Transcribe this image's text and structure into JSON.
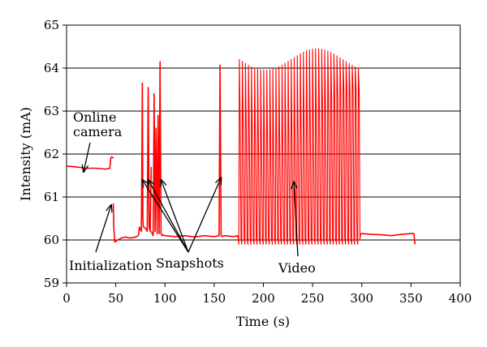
{
  "chart_data": {
    "type": "line",
    "title": "",
    "xlabel": "Time (s)",
    "ylabel": "Intensity (mA)",
    "xlim": [
      0,
      400
    ],
    "ylim": [
      59,
      65
    ],
    "xticks": [
      "0",
      "50",
      "100",
      "150",
      "200",
      "250",
      "300",
      "350",
      "400"
    ],
    "yticks": [
      "59",
      "60",
      "61",
      "62",
      "63",
      "64",
      "65"
    ],
    "grid": "horizontal",
    "legend": "none",
    "series_color": "#ff0000",
    "series": [
      {
        "segments": [
          {
            "x": [
              0,
              10,
              20,
              30,
              40,
              44,
              45,
              46,
              47,
              47.5
            ],
            "y": [
              61.72,
              61.7,
              61.67,
              61.67,
              61.65,
              61.67,
              61.92,
              61.93,
              61.92,
              61.9
            ]
          },
          {
            "x": [
              47.5,
              48,
              49,
              50,
              52,
              56,
              60,
              63,
              66,
              70,
              73
            ],
            "y": [
              60.85,
              60.3,
              59.95,
              59.97,
              60.0,
              60.05,
              60.07,
              60.05,
              60.05,
              60.07,
              60.1
            ]
          },
          {
            "x": [
              73,
              74,
              75,
              76,
              77,
              77.5,
              78
            ],
            "y": [
              60.1,
              60.3,
              60.25,
              60.2,
              63.65,
              60.5,
              60.3
            ]
          },
          {
            "x": [
              78,
              80,
              82,
              83,
              84,
              85,
              86
            ],
            "y": [
              60.3,
              60.28,
              60.2,
              63.55,
              60.3,
              60.2,
              61.7
            ]
          },
          {
            "x": [
              86,
              88,
              89,
              90,
              91,
              92,
              93,
              94,
              95,
              96,
              97,
              98,
              100
            ],
            "y": [
              60.2,
              60.1,
              63.4,
              60.2,
              62.6,
              60.15,
              62.9,
              60.15,
              64.15,
              60.15,
              60.1,
              60.12,
              60.1
            ]
          },
          {
            "x": [
              100,
              110,
              120,
              130,
              140,
              150,
              155,
              156,
              157,
              158,
              160,
              170,
              175
            ],
            "y": [
              60.1,
              60.08,
              60.1,
              60.07,
              60.1,
              60.08,
              60.1,
              64.07,
              60.1,
              60.08,
              60.1,
              60.08,
              60.1
            ]
          }
        ],
        "video_burst": {
          "x_start": 175,
          "x_end": 299,
          "peaks_high": 64.2,
          "peaks_low": 59.9,
          "count": 40
        },
        "tail": {
          "x": [
            299,
            310,
            320,
            330,
            340,
            350,
            353,
            354
          ],
          "y": [
            60.15,
            60.13,
            60.12,
            60.1,
            60.13,
            60.15,
            60.15,
            59.9
          ]
        }
      }
    ],
    "annotations": [
      {
        "text": "Online camera",
        "lines": [
          "Online",
          "camera"
        ],
        "arrow_to": [
          14,
          61.7
        ]
      },
      {
        "text": "Initialization",
        "arrow_to": [
          47,
          60.85
        ]
      },
      {
        "text": "Snapshots",
        "arrow_to": [
          [
            77,
            61.4
          ],
          [
            83,
            61.4
          ],
          [
            96,
            61.4
          ],
          [
            157,
            61.45
          ]
        ]
      },
      {
        "text": "Video",
        "arrow_to": [
          [
            231,
            61.35
          ]
        ]
      }
    ]
  }
}
